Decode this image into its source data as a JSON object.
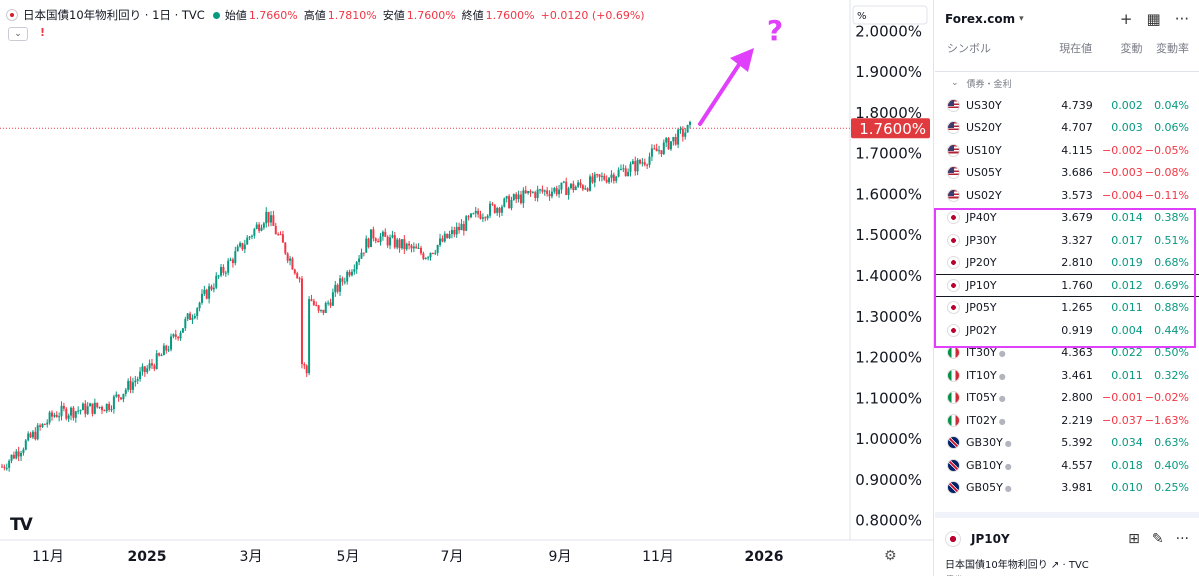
{
  "chart": {
    "symbol_title": "日本国債10年物利回り · 1日 · TVC",
    "ohlc": {
      "open_label": "始値",
      "open": "1.7660%",
      "high_label": "高値",
      "high": "1.7810%",
      "low_label": "安値",
      "low": "1.7600%",
      "close_label": "終値",
      "close": "1.7600%",
      "change": "+0.0120 (+0.69%)"
    },
    "unit_label": "%",
    "price_tag": "1.7600%",
    "annotation": "?",
    "annotation_color": "#e040fb",
    "collapse_icon": "chevron-down-icon",
    "alert_icon": "alert-icon",
    "logo": "TV"
  },
  "chart_data": {
    "type": "candlestick",
    "y_unit": "%",
    "ylim": [
      0.75,
      2.05
    ],
    "y_ticks": [
      "2.0000%",
      "1.9000%",
      "1.8000%",
      "1.7000%",
      "1.6000%",
      "1.5000%",
      "1.4000%",
      "1.3000%",
      "1.2000%",
      "1.1000%",
      "1.0000%",
      "0.9000%",
      "0.8000%"
    ],
    "x_ticks": [
      "11月",
      "2025",
      "3月",
      "5月",
      "7月",
      "9月",
      "11月",
      "2026"
    ],
    "current_value": 1.76,
    "series": [
      {
        "date": "2024-10",
        "value": 0.93
      },
      {
        "date": "2024-11",
        "value": 1.06
      },
      {
        "date": "2024-12",
        "value": 1.08
      },
      {
        "date": "2025-01",
        "value": 1.2
      },
      {
        "date": "2025-02",
        "value": 1.38
      },
      {
        "date": "2025-03",
        "value": 1.55
      },
      {
        "date": "2025-04",
        "value": 1.3
      },
      {
        "date": "2025-05",
        "value": 1.5
      },
      {
        "date": "2025-06",
        "value": 1.45
      },
      {
        "date": "2025-07",
        "value": 1.55
      },
      {
        "date": "2025-08",
        "value": 1.6
      },
      {
        "date": "2025-09",
        "value": 1.62
      },
      {
        "date": "2025-10",
        "value": 1.67
      },
      {
        "date": "2025-11",
        "value": 1.76
      }
    ]
  },
  "watchlist": {
    "title": "Forex.com",
    "columns": [
      "シンボル",
      "現在値",
      "変動",
      "変動率"
    ],
    "section": "債券・金利",
    "rows": [
      {
        "flag": "us",
        "symbol": "US30Y",
        "status": "",
        "last": "4.739",
        "chg": "0.002",
        "pct": "0.04%",
        "dir": "pos"
      },
      {
        "flag": "us",
        "symbol": "US20Y",
        "status": "",
        "last": "4.707",
        "chg": "0.003",
        "pct": "0.06%",
        "dir": "pos"
      },
      {
        "flag": "us",
        "symbol": "US10Y",
        "status": "",
        "last": "4.115",
        "chg": "−0.002",
        "pct": "−0.05%",
        "dir": "neg"
      },
      {
        "flag": "us",
        "symbol": "US05Y",
        "status": "",
        "last": "3.686",
        "chg": "−0.003",
        "pct": "−0.08%",
        "dir": "neg"
      },
      {
        "flag": "us",
        "symbol": "US02Y",
        "status": "",
        "last": "3.573",
        "chg": "−0.004",
        "pct": "−0.11%",
        "dir": "neg"
      },
      {
        "flag": "jp",
        "symbol": "JP40Y",
        "status": "",
        "last": "3.679",
        "chg": "0.014",
        "pct": "0.38%",
        "dir": "pos"
      },
      {
        "flag": "jp",
        "symbol": "JP30Y",
        "status": "",
        "last": "3.327",
        "chg": "0.017",
        "pct": "0.51%",
        "dir": "pos"
      },
      {
        "flag": "jp",
        "symbol": "JP20Y",
        "status": "",
        "last": "2.810",
        "chg": "0.019",
        "pct": "0.68%",
        "dir": "pos"
      },
      {
        "flag": "jp",
        "symbol": "JP10Y",
        "status": "",
        "last": "1.760",
        "chg": "0.012",
        "pct": "0.69%",
        "dir": "pos",
        "selected": true
      },
      {
        "flag": "jp",
        "symbol": "JP05Y",
        "status": "",
        "last": "1.265",
        "chg": "0.011",
        "pct": "0.88%",
        "dir": "pos"
      },
      {
        "flag": "jp",
        "symbol": "JP02Y",
        "status": "",
        "last": "0.919",
        "chg": "0.004",
        "pct": "0.44%",
        "dir": "pos"
      },
      {
        "flag": "it",
        "symbol": "IT30Y",
        "status": "●",
        "last": "4.363",
        "chg": "0.022",
        "pct": "0.50%",
        "dir": "pos"
      },
      {
        "flag": "it",
        "symbol": "IT10Y",
        "status": "●",
        "last": "3.461",
        "chg": "0.011",
        "pct": "0.32%",
        "dir": "pos"
      },
      {
        "flag": "it",
        "symbol": "IT05Y",
        "status": "●",
        "last": "2.800",
        "chg": "−0.001",
        "pct": "−0.02%",
        "dir": "neg"
      },
      {
        "flag": "it",
        "symbol": "IT02Y",
        "status": "●",
        "last": "2.219",
        "chg": "−0.037",
        "pct": "−1.63%",
        "dir": "neg"
      },
      {
        "flag": "gb",
        "symbol": "GB30Y",
        "status": "●",
        "last": "5.392",
        "chg": "0.034",
        "pct": "0.63%",
        "dir": "pos"
      },
      {
        "flag": "gb",
        "symbol": "GB10Y",
        "status": "●",
        "last": "4.557",
        "chg": "0.018",
        "pct": "0.40%",
        "dir": "pos"
      },
      {
        "flag": "gb",
        "symbol": "GB05Y",
        "status": "●",
        "last": "3.981",
        "chg": "0.010",
        "pct": "0.25%",
        "dir": "pos"
      }
    ],
    "highlight_color": "#e040fb"
  },
  "details": {
    "symbol": "JP10Y",
    "description": "日本国債10年物利回り",
    "source": "TVC",
    "category": "債券"
  },
  "colors": {
    "up": "#089981",
    "down": "#f23645",
    "price_tag_bg": "#e03a3e"
  }
}
